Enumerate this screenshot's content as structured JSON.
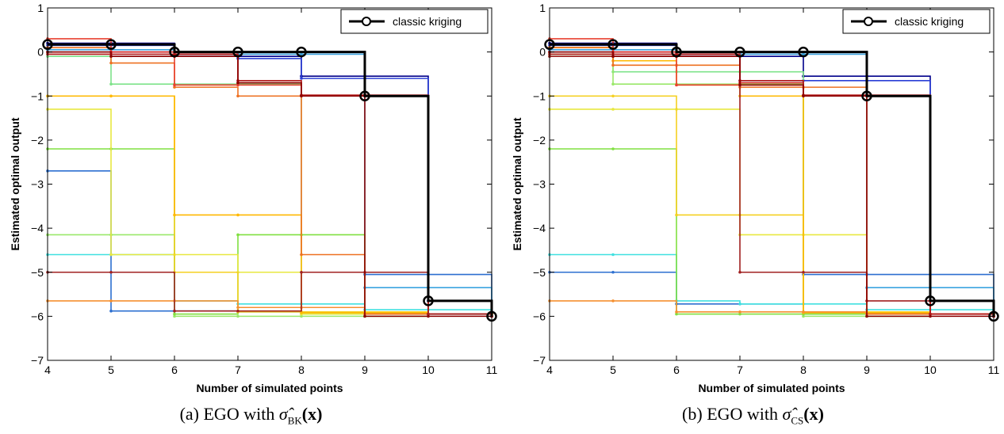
{
  "chart_data": [
    {
      "type": "line",
      "xlabel": "Number of simulated points",
      "ylabel": "Estimated optimal output",
      "xlim": [
        4,
        11
      ],
      "ylim": [
        -7,
        1
      ],
      "xticks": [
        4,
        5,
        6,
        7,
        8,
        9,
        10,
        11
      ],
      "yticks": [
        1,
        0,
        -1,
        -2,
        -3,
        -4,
        -5,
        -6,
        -7
      ],
      "legend": {
        "position": "top-right",
        "entries": [
          "classic kriging"
        ]
      },
      "caption": "(a) EGO with σ̂BK(x)",
      "classic": {
        "name": "classic kriging",
        "x": [
          4,
          5,
          6,
          7,
          8,
          9,
          10,
          11
        ],
        "values": [
          0.17,
          0.17,
          0.0,
          0.0,
          0.0,
          -1.0,
          -5.65,
          -6.0
        ],
        "color": "#000000"
      },
      "series": [
        {
          "color": "#00008b",
          "values": [
            0.2,
            0.2,
            -0.05,
            -0.1,
            -0.55,
            -0.55,
            -5.65,
            -5.9
          ]
        },
        {
          "color": "#2a3fd6",
          "values": [
            0.15,
            0.15,
            -0.1,
            -0.15,
            -0.6,
            -0.6,
            -5.65,
            -5.95
          ]
        },
        {
          "color": "#2c6fd0",
          "values": [
            -2.7,
            -5.88,
            -5.88,
            -5.9,
            -5.9,
            -5.05,
            -5.05,
            -5.95
          ]
        },
        {
          "color": "#3aa3e0",
          "values": [
            0.05,
            0.05,
            -0.05,
            -0.05,
            -0.05,
            -5.35,
            -5.35,
            -5.9
          ]
        },
        {
          "color": "#40e0e0",
          "values": [
            -4.6,
            -4.6,
            -5.65,
            -5.72,
            -5.72,
            -5.85,
            -5.85,
            -5.95
          ]
        },
        {
          "color": "#7ee38a",
          "values": [
            -0.1,
            -0.73,
            -0.73,
            -0.73,
            -5.95,
            -5.95,
            -5.95,
            -5.95
          ]
        },
        {
          "color": "#9ae86a",
          "values": [
            -4.15,
            -4.15,
            -6.0,
            -6.0,
            -6.0,
            -6.0,
            -5.95,
            -5.95
          ]
        },
        {
          "color": "#80e040",
          "values": [
            -2.2,
            -2.2,
            -5.95,
            -4.15,
            -4.15,
            -6.0,
            -5.95,
            -5.95
          ]
        },
        {
          "color": "#e8e840",
          "values": [
            -1.3,
            -4.6,
            -4.6,
            -5.0,
            -5.95,
            -5.95,
            -5.95,
            -5.95
          ]
        },
        {
          "color": "#f5d020",
          "values": [
            -1.0,
            -1.0,
            -5.0,
            -5.9,
            -5.9,
            -5.9,
            -5.95,
            -5.95
          ]
        },
        {
          "color": "#ffb800",
          "values": [
            -1.0,
            -1.0,
            -3.7,
            -3.7,
            -5.92,
            -5.92,
            -5.95,
            -5.95
          ]
        },
        {
          "color": "#f59030",
          "values": [
            -5.65,
            -5.65,
            -5.65,
            -5.8,
            -5.8,
            -5.95,
            -5.95,
            -5.95
          ]
        },
        {
          "color": "#ee7020",
          "values": [
            0.1,
            -0.25,
            -0.8,
            -1.0,
            -4.6,
            -5.95,
            -5.95,
            -5.95
          ]
        },
        {
          "color": "#e84030",
          "values": [
            0.3,
            0.0,
            -0.75,
            -0.75,
            -0.98,
            -0.98,
            -5.95,
            -6.0
          ]
        },
        {
          "color": "#d02020",
          "values": [
            0.0,
            0.0,
            -0.05,
            -0.7,
            -1.0,
            -1.0,
            -5.95,
            -6.0
          ]
        },
        {
          "color": "#b01818",
          "values": [
            -0.05,
            -0.05,
            -0.05,
            -0.65,
            -0.98,
            -0.98,
            -5.95,
            -6.0
          ]
        },
        {
          "color": "#a02020",
          "values": [
            -5.0,
            -5.0,
            -5.88,
            -5.88,
            -5.0,
            -5.0,
            -5.95,
            -6.0
          ]
        },
        {
          "color": "#8b0000",
          "values": [
            0.0,
            -0.1,
            -0.1,
            -0.7,
            -1.0,
            -6.0,
            -6.0,
            -6.0
          ]
        }
      ]
    },
    {
      "type": "line",
      "xlabel": "Number of simulated points",
      "ylabel": "Estimated optimal output",
      "xlim": [
        4,
        11
      ],
      "ylim": [
        -7,
        1
      ],
      "xticks": [
        4,
        5,
        6,
        7,
        8,
        9,
        10,
        11
      ],
      "yticks": [
        1,
        0,
        -1,
        -2,
        -3,
        -4,
        -5,
        -6,
        -7
      ],
      "legend": {
        "position": "top-right",
        "entries": [
          "classic kriging"
        ]
      },
      "caption": "(b) EGO with σ̂CS(x)",
      "classic": {
        "name": "classic kriging",
        "x": [
          4,
          5,
          6,
          7,
          8,
          9,
          10,
          11
        ],
        "values": [
          0.17,
          0.17,
          0.0,
          0.0,
          0.0,
          -1.0,
          -5.65,
          -6.0
        ],
        "color": "#000000"
      },
      "series": [
        {
          "color": "#00008b",
          "values": [
            0.2,
            0.2,
            -0.05,
            -0.1,
            -0.55,
            -0.55,
            -5.65,
            -5.9
          ]
        },
        {
          "color": "#2a3fd6",
          "values": [
            0.15,
            0.15,
            -0.1,
            -0.65,
            -0.65,
            -0.65,
            -5.65,
            -5.95
          ]
        },
        {
          "color": "#2c6fd0",
          "values": [
            -5.0,
            -5.0,
            -5.72,
            -5.72,
            -5.05,
            -5.05,
            -5.05,
            -5.95
          ]
        },
        {
          "color": "#3aa3e0",
          "values": [
            0.05,
            0.05,
            -0.05,
            -0.05,
            -0.05,
            -5.35,
            -5.35,
            -5.9
          ]
        },
        {
          "color": "#40e0e0",
          "values": [
            -4.6,
            -4.6,
            -5.65,
            -5.72,
            -5.72,
            -5.85,
            -5.85,
            -5.95
          ]
        },
        {
          "color": "#7ee38a",
          "values": [
            -0.1,
            -0.45,
            -0.45,
            -0.45,
            -5.95,
            -5.95,
            -5.95,
            -5.95
          ]
        },
        {
          "color": "#9ae86a",
          "values": [
            -0.05,
            -0.73,
            -0.73,
            -0.73,
            -6.0,
            -6.0,
            -5.95,
            -5.95
          ]
        },
        {
          "color": "#80e040",
          "values": [
            -2.2,
            -2.2,
            -5.95,
            -5.95,
            -5.95,
            -6.0,
            -5.95,
            -5.95
          ]
        },
        {
          "color": "#e8e840",
          "values": [
            -1.3,
            -1.3,
            -1.3,
            -4.15,
            -4.15,
            -5.95,
            -5.95,
            -5.95
          ]
        },
        {
          "color": "#f5d020",
          "values": [
            -1.0,
            -1.0,
            -3.7,
            -3.7,
            -5.9,
            -5.9,
            -5.95,
            -5.95
          ]
        },
        {
          "color": "#ffb800",
          "values": [
            0.1,
            -0.2,
            -0.75,
            -1.0,
            -5.92,
            -5.92,
            -5.95,
            -5.95
          ]
        },
        {
          "color": "#f59030",
          "values": [
            -5.65,
            -5.65,
            -5.9,
            -5.9,
            -5.9,
            -5.95,
            -5.95,
            -5.95
          ]
        },
        {
          "color": "#ee7020",
          "values": [
            0.1,
            -0.3,
            -0.3,
            -0.8,
            -0.8,
            -5.95,
            -5.95,
            -5.95
          ]
        },
        {
          "color": "#e84030",
          "values": [
            0.3,
            0.0,
            -0.75,
            -0.75,
            -0.98,
            -0.98,
            -5.95,
            -6.0
          ]
        },
        {
          "color": "#d02020",
          "values": [
            0.0,
            0.0,
            -0.05,
            -0.7,
            -1.0,
            -1.0,
            -5.95,
            -6.0
          ]
        },
        {
          "color": "#b01818",
          "values": [
            -0.05,
            -0.05,
            -0.05,
            -0.65,
            -0.98,
            -0.98,
            -5.95,
            -6.0
          ]
        },
        {
          "color": "#a02020",
          "values": [
            -0.1,
            -0.1,
            -0.1,
            -5.0,
            -5.0,
            -5.65,
            -5.65,
            -6.0
          ]
        },
        {
          "color": "#8b0000",
          "values": [
            0.0,
            -0.1,
            -0.1,
            -0.75,
            -1.0,
            -6.0,
            -6.0,
            -6.0
          ]
        }
      ]
    }
  ],
  "captions": {
    "a": {
      "prefix": "(a) EGO with ",
      "symbol": "σ̂",
      "sub": "BK",
      "arg": "(x)"
    },
    "b": {
      "prefix": "(b) EGO with ",
      "symbol": "σ̂",
      "sub": "CS",
      "arg": "(x)"
    }
  }
}
